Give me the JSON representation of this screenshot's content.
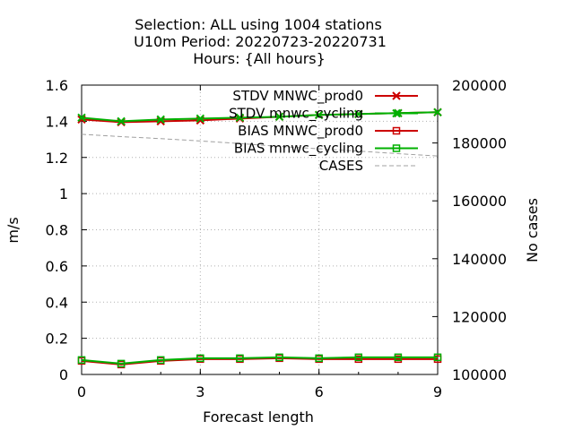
{
  "chart_data": {
    "type": "line",
    "title_lines": [
      "Selection: ALL using  1004 stations",
      "U10m   Period: 20220723-20220731",
      "Hours: {All hours}"
    ],
    "xlabel": "Forecast length",
    "ylabel": "m/s",
    "y2label": "No cases",
    "xlim": [
      0,
      9
    ],
    "ylim": [
      0,
      1.6
    ],
    "y2lim": [
      100000,
      200000
    ],
    "xticks": [
      "0",
      "3",
      "6",
      "9"
    ],
    "yticks": [
      "0",
      "0.2",
      "0.4",
      "0.6",
      "0.8",
      "1",
      "1.2",
      "1.4",
      "1.6"
    ],
    "y2ticks": [
      "100000",
      "120000",
      "140000",
      "160000",
      "180000",
      "200000"
    ],
    "x": [
      0,
      1,
      2,
      3,
      4,
      5,
      6,
      7,
      8,
      9
    ],
    "grid": true,
    "legend_position": "top-right",
    "series": [
      {
        "name": "STDV MNWC_prod0",
        "axis": "y",
        "color": "#cc0000",
        "marker": "x",
        "values": [
          1.41,
          1.395,
          1.4,
          1.405,
          1.415,
          1.425,
          1.435,
          1.44,
          1.445,
          1.45
        ]
      },
      {
        "name": "STDV mnwc_cycling",
        "axis": "y",
        "color": "#00b000",
        "marker": "x",
        "values": [
          1.42,
          1.4,
          1.41,
          1.415,
          1.42,
          1.425,
          1.435,
          1.44,
          1.445,
          1.45
        ]
      },
      {
        "name": "BIAS MNWC_prod0",
        "axis": "y",
        "color": "#cc0000",
        "marker": "square",
        "values": [
          0.075,
          0.055,
          0.075,
          0.085,
          0.085,
          0.09,
          0.085,
          0.085,
          0.085,
          0.085
        ]
      },
      {
        "name": "BIAS mnwc_cycling",
        "axis": "y",
        "color": "#00b000",
        "marker": "square",
        "values": [
          0.08,
          0.06,
          0.08,
          0.09,
          0.09,
          0.095,
          0.09,
          0.095,
          0.095,
          0.095
        ]
      },
      {
        "name": "CASES",
        "axis": "y2",
        "color": "#a0a0a0",
        "marker": "none",
        "dashed": true,
        "values": [
          183000,
          182200,
          181500,
          180700,
          179800,
          178800,
          178000,
          177200,
          176300,
          175500
        ]
      }
    ]
  }
}
